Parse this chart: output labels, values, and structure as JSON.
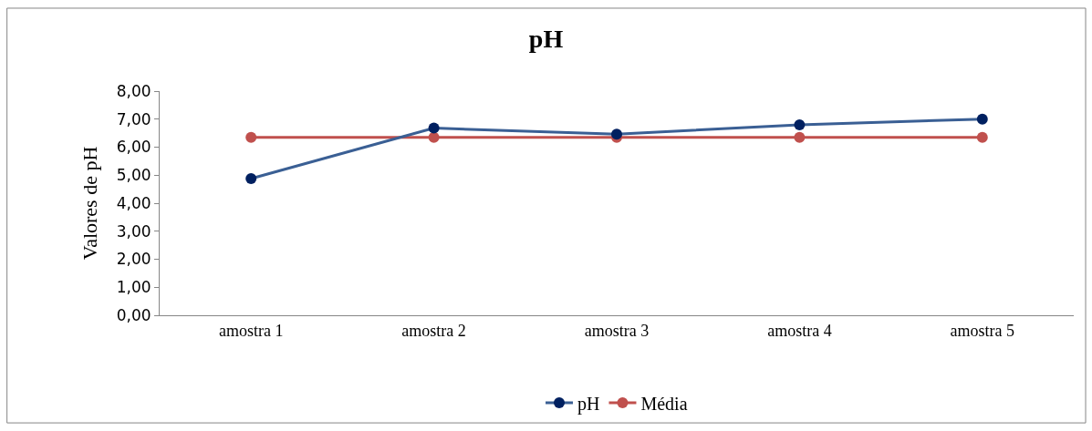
{
  "chart_data": {
    "type": "line",
    "title": "pH",
    "ylabel": "Valores de pH",
    "categories": [
      "amostra 1",
      "amostra 2",
      "amostra 3",
      "amostra 4",
      "amostra 5"
    ],
    "series": [
      {
        "name": "pH",
        "color": "#002060",
        "values": [
          4.88,
          6.68,
          6.46,
          6.8,
          7.0
        ]
      },
      {
        "name": "Média",
        "color": "#c0504d",
        "values": [
          6.35,
          6.35,
          6.35,
          6.35,
          6.35
        ]
      }
    ],
    "ylim": [
      0,
      8
    ],
    "yticks": [
      {
        "value": 0,
        "label": "0,00"
      },
      {
        "value": 1,
        "label": "1,00"
      },
      {
        "value": 2,
        "label": "2,00"
      },
      {
        "value": 3,
        "label": "3,00"
      },
      {
        "value": 4,
        "label": "4,00"
      },
      {
        "value": 5,
        "label": "5,00"
      },
      {
        "value": 6,
        "label": "6,00"
      },
      {
        "value": 7,
        "label": "7,00"
      },
      {
        "value": 8,
        "label": "8,00"
      }
    ],
    "legend": "bottom",
    "marker": "circle",
    "line_style": "solid"
  }
}
